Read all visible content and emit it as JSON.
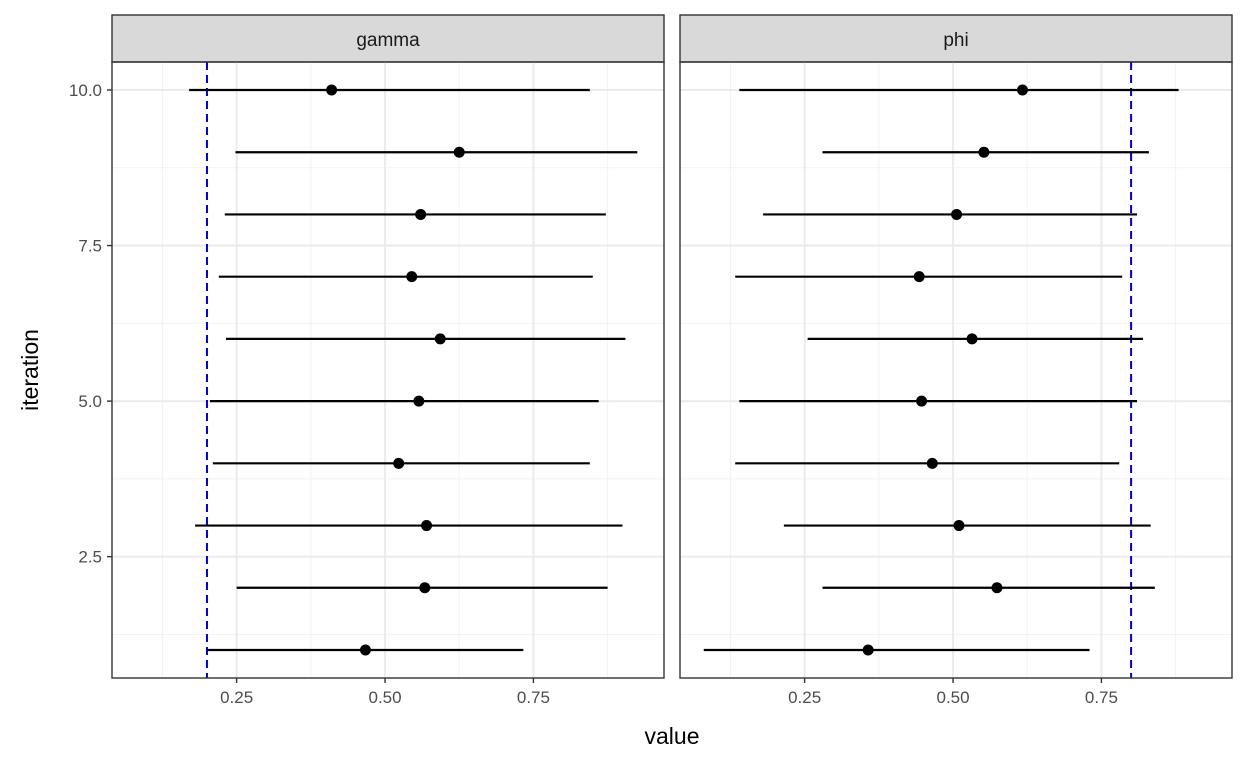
{
  "chart_data": {
    "type": "forest",
    "xlabel": "value",
    "ylabel": "iteration",
    "xlim": [
      0.04,
      0.97
    ],
    "ylim": [
      0.55,
      10.45
    ],
    "x_ticks": [
      0.25,
      0.5,
      0.75
    ],
    "x_tick_labels": [
      "0.25",
      "0.50",
      "0.75"
    ],
    "y_ticks": [
      2.5,
      5.0,
      7.5,
      10.0
    ],
    "y_tick_labels": [
      "2.5",
      "5.0",
      "7.5",
      "10.0"
    ],
    "grid": true,
    "point_color": "#000000",
    "reference_line_color": "#0000cc",
    "panels": [
      {
        "strip": "gamma",
        "reference_value": 0.2,
        "points": [
          {
            "iteration": 1,
            "value": 0.467,
            "lower": 0.2,
            "upper": 0.733
          },
          {
            "iteration": 2,
            "value": 0.567,
            "lower": 0.25,
            "upper": 0.875
          },
          {
            "iteration": 3,
            "value": 0.57,
            "lower": 0.18,
            "upper": 0.9
          },
          {
            "iteration": 4,
            "value": 0.523,
            "lower": 0.21,
            "upper": 0.845
          },
          {
            "iteration": 5,
            "value": 0.557,
            "lower": 0.205,
            "upper": 0.86
          },
          {
            "iteration": 6,
            "value": 0.593,
            "lower": 0.232,
            "upper": 0.905
          },
          {
            "iteration": 7,
            "value": 0.545,
            "lower": 0.22,
            "upper": 0.85
          },
          {
            "iteration": 8,
            "value": 0.56,
            "lower": 0.23,
            "upper": 0.872
          },
          {
            "iteration": 9,
            "value": 0.625,
            "lower": 0.248,
            "upper": 0.925
          },
          {
            "iteration": 10,
            "value": 0.41,
            "lower": 0.17,
            "upper": 0.845
          }
        ]
      },
      {
        "strip": "phi",
        "reference_value": 0.8,
        "points": [
          {
            "iteration": 1,
            "value": 0.357,
            "lower": 0.08,
            "upper": 0.73
          },
          {
            "iteration": 2,
            "value": 0.574,
            "lower": 0.28,
            "upper": 0.84
          },
          {
            "iteration": 3,
            "value": 0.51,
            "lower": 0.215,
            "upper": 0.833
          },
          {
            "iteration": 4,
            "value": 0.465,
            "lower": 0.133,
            "upper": 0.78
          },
          {
            "iteration": 5,
            "value": 0.447,
            "lower": 0.14,
            "upper": 0.81
          },
          {
            "iteration": 6,
            "value": 0.532,
            "lower": 0.255,
            "upper": 0.82
          },
          {
            "iteration": 7,
            "value": 0.443,
            "lower": 0.133,
            "upper": 0.785
          },
          {
            "iteration": 8,
            "value": 0.506,
            "lower": 0.18,
            "upper": 0.81
          },
          {
            "iteration": 9,
            "value": 0.552,
            "lower": 0.28,
            "upper": 0.83
          },
          {
            "iteration": 10,
            "value": 0.617,
            "lower": 0.14,
            "upper": 0.88
          }
        ]
      }
    ]
  }
}
